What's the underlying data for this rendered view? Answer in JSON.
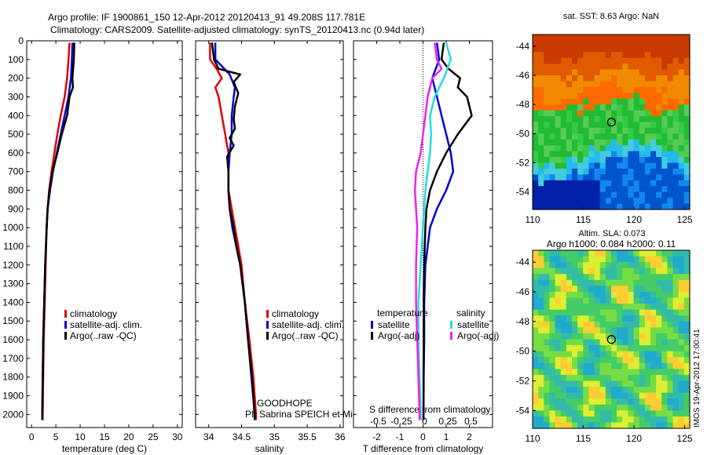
{
  "header": {
    "line1": "Argo profile: IF 1900861_150 12-Apr-2012 20120413_91 49.208S 117.781E",
    "line2": "Climatology: CARS2009. Satellite-adjusted climatology: synTS_20120413.nc (0.94d later)"
  },
  "colors": {
    "climatology": "#e00000",
    "satellite": "#0000dd",
    "argo": "#000000",
    "sat_salinity": "#22dddd",
    "argo_salinity": "#ee22ee"
  },
  "depth_ticks": [
    0,
    100,
    200,
    300,
    400,
    500,
    600,
    700,
    800,
    900,
    1000,
    1100,
    1200,
    1300,
    1400,
    1500,
    1600,
    1700,
    1800,
    1900,
    2000
  ],
  "chart_data": [
    {
      "type": "line",
      "xlabel": "temperature (deg C)",
      "ylabel": "",
      "xlim": [
        -1,
        31
      ],
      "ylim": [
        2070,
        0
      ],
      "xticks": [
        "0",
        "5",
        "10",
        "15",
        "20",
        "25",
        "30"
      ],
      "xtick_values": [
        0,
        5,
        10,
        15,
        20,
        25,
        30
      ],
      "legend": [
        "climatology",
        "satellite-adj. clim.",
        "Argo(..raw -QC)"
      ],
      "legend_position": "lower-right",
      "series": [
        {
          "name": "climatology",
          "color": "#e00000",
          "points": [
            [
              7.8,
              10
            ],
            [
              7.6,
              100
            ],
            [
              7.3,
              200
            ],
            [
              6.8,
              300
            ],
            [
              6.0,
              400
            ],
            [
              5.3,
              500
            ],
            [
              4.7,
              600
            ],
            [
              4.1,
              700
            ],
            [
              3.6,
              800
            ],
            [
              3.3,
              900
            ],
            [
              3.1,
              1000
            ],
            [
              2.9,
              1200
            ],
            [
              2.7,
              1400
            ],
            [
              2.5,
              1600
            ],
            [
              2.4,
              1800
            ],
            [
              2.3,
              2000
            ],
            [
              2.3,
              2030
            ]
          ]
        },
        {
          "name": "satellite-adj. clim.",
          "color": "#0000dd",
          "points": [
            [
              8.4,
              10
            ],
            [
              8.3,
              100
            ],
            [
              8.1,
              200
            ],
            [
              7.6,
              300
            ],
            [
              6.8,
              400
            ],
            [
              6.0,
              500
            ],
            [
              5.2,
              600
            ],
            [
              4.4,
              700
            ],
            [
              3.8,
              800
            ],
            [
              3.3,
              900
            ],
            [
              3.1,
              1000
            ],
            [
              2.8,
              1200
            ],
            [
              2.6,
              1400
            ],
            [
              2.4,
              1600
            ],
            [
              2.3,
              1800
            ],
            [
              2.2,
              2000
            ],
            [
              2.2,
              2030
            ]
          ]
        },
        {
          "name": "Argo(..raw -QC)",
          "color": "#000000",
          "points": [
            [
              8.8,
              10
            ],
            [
              8.7,
              100
            ],
            [
              8.4,
              200
            ],
            [
              8.5,
              250
            ],
            [
              7.8,
              300
            ],
            [
              7.3,
              400
            ],
            [
              6.2,
              500
            ],
            [
              5.3,
              600
            ],
            [
              4.3,
              700
            ],
            [
              3.7,
              800
            ],
            [
              3.3,
              900
            ],
            [
              3.1,
              1000
            ],
            [
              2.8,
              1200
            ],
            [
              2.6,
              1400
            ],
            [
              2.4,
              1600
            ],
            [
              2.3,
              1800
            ],
            [
              2.2,
              2000
            ],
            [
              2.2,
              2030
            ]
          ]
        }
      ]
    },
    {
      "type": "line",
      "xlabel": "salinity",
      "ylabel": "",
      "xlim": [
        33.8,
        36.05
      ],
      "ylim": [
        2070,
        0
      ],
      "xticks": [
        "34",
        "34.5",
        "35",
        "35.5",
        "36"
      ],
      "xtick_values": [
        34,
        34.5,
        35,
        35.5,
        36
      ],
      "legend": [
        "climatology",
        "satellite-adj. clim.",
        "Argo(..raw -QC)"
      ],
      "legend_position": "lower-right",
      "annotation": [
        "GOODHOPE",
        "PI: Sabrina SPEICH et Michel ARHAN"
      ],
      "series": [
        {
          "name": "climatology",
          "color": "#e00000",
          "points": [
            [
              34.02,
              10
            ],
            [
              34.02,
              100
            ],
            [
              34.12,
              150
            ],
            [
              34.2,
              200
            ],
            [
              34.1,
              250
            ],
            [
              34.15,
              300
            ],
            [
              34.2,
              400
            ],
            [
              34.25,
              500
            ],
            [
              34.3,
              600
            ],
            [
              34.3,
              700
            ],
            [
              34.3,
              800
            ],
            [
              34.35,
              900
            ],
            [
              34.4,
              1000
            ],
            [
              34.45,
              1100
            ],
            [
              34.5,
              1200
            ],
            [
              34.55,
              1400
            ],
            [
              34.62,
              1600
            ],
            [
              34.68,
              1800
            ],
            [
              34.72,
              2000
            ],
            [
              34.72,
              2030
            ]
          ]
        },
        {
          "name": "satellite-adj. clim.",
          "color": "#0000dd",
          "points": [
            [
              34.1,
              10
            ],
            [
              34.1,
              100
            ],
            [
              34.32,
              180
            ],
            [
              34.4,
              250
            ],
            [
              34.38,
              300
            ],
            [
              34.35,
              400
            ],
            [
              34.35,
              500
            ],
            [
              34.32,
              600
            ],
            [
              34.3,
              700
            ],
            [
              34.3,
              800
            ],
            [
              34.32,
              900
            ],
            [
              34.36,
              1000
            ],
            [
              34.42,
              1100
            ],
            [
              34.48,
              1200
            ],
            [
              34.55,
              1400
            ],
            [
              34.6,
              1600
            ],
            [
              34.65,
              1800
            ],
            [
              34.7,
              2000
            ],
            [
              34.7,
              2030
            ]
          ]
        },
        {
          "name": "Argo(..raw -QC)",
          "color": "#000000",
          "points": [
            [
              34.05,
              10
            ],
            [
              34.08,
              100
            ],
            [
              34.15,
              150
            ],
            [
              34.48,
              180
            ],
            [
              34.38,
              220
            ],
            [
              34.45,
              280
            ],
            [
              34.4,
              350
            ],
            [
              34.38,
              420
            ],
            [
              34.4,
              470
            ],
            [
              34.32,
              520
            ],
            [
              34.38,
              560
            ],
            [
              34.28,
              620
            ],
            [
              34.3,
              700
            ],
            [
              34.3,
              800
            ],
            [
              34.32,
              900
            ],
            [
              34.38,
              1000
            ],
            [
              34.42,
              1100
            ],
            [
              34.48,
              1200
            ],
            [
              34.55,
              1400
            ],
            [
              34.6,
              1600
            ],
            [
              34.66,
              1800
            ],
            [
              34.7,
              2000
            ],
            [
              34.7,
              2030
            ]
          ]
        }
      ]
    },
    {
      "type": "line",
      "xlabel": "T difference from climatology",
      "xlabel2": "S difference from climatology",
      "ylabel": "",
      "xlim": [
        -3,
        3.0
      ],
      "ylim": [
        2070,
        0
      ],
      "xticks": [
        "-2",
        "-1",
        "0",
        "1",
        "2"
      ],
      "xtick_values": [
        -2,
        -1,
        0,
        1,
        2
      ],
      "xticks2": [
        "-0.5",
        "-0.25",
        "0",
        "0.25",
        "0.5"
      ],
      "xtick2_values": [
        -0.5,
        -0.25,
        0,
        0.25,
        0.5
      ],
      "legend_headers": [
        "temperature",
        "salinity"
      ],
      "legend": [
        "satellite",
        "Argo(-adj)",
        "satellite",
        "Argo(-adj)"
      ],
      "legend_position": "lower-center",
      "series": [
        {
          "name": "satellite",
          "color": "#0000dd",
          "points": [
            [
              0.6,
              10
            ],
            [
              0.7,
              100
            ],
            [
              0.4,
              200
            ],
            [
              0.6,
              300
            ],
            [
              0.8,
              400
            ],
            [
              1.0,
              500
            ],
            [
              1.2,
              600
            ],
            [
              1.3,
              700
            ],
            [
              1.0,
              800
            ],
            [
              0.6,
              900
            ],
            [
              0.3,
              1000
            ],
            [
              0.1,
              1200
            ],
            [
              0.05,
              1400
            ],
            [
              0.05,
              1600
            ],
            [
              0.03,
              1800
            ],
            [
              0.02,
              2000
            ],
            [
              0.02,
              2030
            ]
          ]
        },
        {
          "name": "Argo(-adj)",
          "color": "#000000",
          "points": [
            [
              0.9,
              10
            ],
            [
              0.8,
              100
            ],
            [
              1.1,
              150
            ],
            [
              1.6,
              200
            ],
            [
              1.5,
              250
            ],
            [
              1.9,
              300
            ],
            [
              2.1,
              400
            ],
            [
              1.5,
              500
            ],
            [
              1.0,
              600
            ],
            [
              0.6,
              700
            ],
            [
              0.3,
              800
            ],
            [
              0.15,
              900
            ],
            [
              0.1,
              1000
            ],
            [
              0.05,
              1200
            ],
            [
              0.03,
              1400
            ],
            [
              0.03,
              1600
            ],
            [
              0.02,
              1800
            ],
            [
              0.02,
              2000
            ],
            [
              0.02,
              2030
            ]
          ]
        },
        {
          "name": "satellite",
          "color": "#22dddd",
          "points": [
            [
              1.0,
              10
            ],
            [
              1.2,
              100
            ],
            [
              0.9,
              200
            ],
            [
              0.5,
              300
            ],
            [
              0.3,
              400
            ],
            [
              0.35,
              500
            ],
            [
              0.3,
              600
            ],
            [
              0.2,
              700
            ],
            [
              0.1,
              800
            ],
            [
              0.05,
              900
            ],
            [
              0.0,
              1000
            ],
            [
              -0.1,
              1200
            ],
            [
              -0.2,
              1400
            ],
            [
              -0.2,
              1600
            ],
            [
              -0.15,
              1800
            ],
            [
              -0.1,
              2000
            ],
            [
              -0.1,
              2030
            ]
          ]
        },
        {
          "name": "Argo(-adj)",
          "color": "#ee22ee",
          "points": [
            [
              0.5,
              10
            ],
            [
              0.6,
              100
            ],
            [
              0.8,
              150
            ],
            [
              0.4,
              200
            ],
            [
              0.2,
              300
            ],
            [
              0.1,
              400
            ],
            [
              0.0,
              500
            ],
            [
              -0.1,
              600
            ],
            [
              -0.3,
              700
            ],
            [
              -0.35,
              800
            ],
            [
              -0.3,
              900
            ],
            [
              -0.25,
              1000
            ],
            [
              -0.3,
              1200
            ],
            [
              -0.3,
              1400
            ],
            [
              -0.25,
              1600
            ],
            [
              -0.2,
              1800
            ],
            [
              -0.15,
              2000
            ],
            [
              -0.15,
              2030
            ]
          ]
        }
      ]
    },
    {
      "type": "heatmap",
      "title": "sat. SST: 8.63 Argo: NaN",
      "xlim": [
        110,
        125.5
      ],
      "ylim": [
        -55.2,
        -43.2
      ],
      "xticks": [
        "110",
        "115",
        "120",
        "125"
      ],
      "xtick_values": [
        110,
        115,
        120,
        125
      ],
      "yticks": [
        "-44",
        "-46",
        "-48",
        "-50",
        "-52",
        "-54"
      ],
      "ytick_values": [
        -44,
        -46,
        -48,
        -50,
        -52,
        -54
      ],
      "marker": [
        117.78,
        -49.21
      ]
    },
    {
      "type": "heatmap",
      "title": "Altim. SLA: 0.073",
      "subtitle": "Argo h1000: 0.084 h2000: 0.11",
      "xlim": [
        110,
        125.5
      ],
      "ylim": [
        -55.2,
        -43.2
      ],
      "xticks": [
        "110",
        "115",
        "120",
        "125"
      ],
      "xtick_values": [
        110,
        115,
        120,
        125
      ],
      "yticks": [
        "-44",
        "-46",
        "-48",
        "-50",
        "-52",
        "-54"
      ],
      "ytick_values": [
        -44,
        -46,
        -48,
        -50,
        -52,
        -54
      ],
      "marker": [
        117.78,
        -49.21
      ]
    }
  ],
  "credit": "IMOS 19-Apr-2012 17:00:41"
}
